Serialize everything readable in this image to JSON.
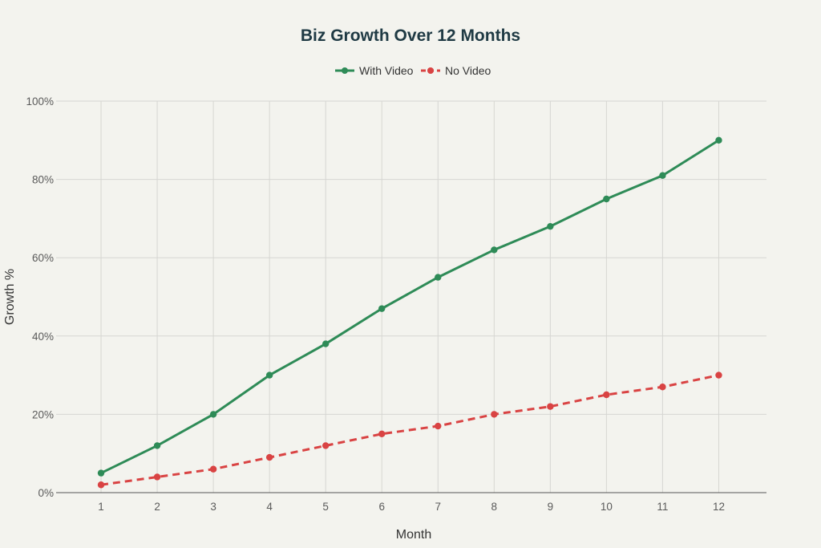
{
  "chart_data": {
    "type": "line",
    "title": "Biz Growth Over 12 Months",
    "xlabel": "Month",
    "ylabel": "Growth %",
    "x": [
      1,
      2,
      3,
      4,
      5,
      6,
      7,
      8,
      9,
      10,
      11,
      12
    ],
    "x_tick_labels": [
      "1",
      "2",
      "3",
      "4",
      "5",
      "6",
      "7",
      "8",
      "9",
      "10",
      "11",
      "12"
    ],
    "ylim": [
      0,
      100
    ],
    "y_ticks": [
      0,
      20,
      40,
      60,
      80,
      100
    ],
    "y_tick_labels": [
      "0%",
      "20%",
      "40%",
      "60%",
      "80%",
      "100%"
    ],
    "grid": true,
    "legend_position": "top-center",
    "series": [
      {
        "name": "With Video",
        "color": "#2e8b57",
        "dash": "solid",
        "values": [
          5,
          12,
          20,
          30,
          38,
          47,
          55,
          62,
          68,
          75,
          81,
          90
        ]
      },
      {
        "name": "No Video",
        "color": "#d94343",
        "dash": "dashed",
        "values": [
          2,
          4,
          6,
          9,
          12,
          15,
          17,
          20,
          22,
          25,
          27,
          30
        ]
      }
    ]
  }
}
